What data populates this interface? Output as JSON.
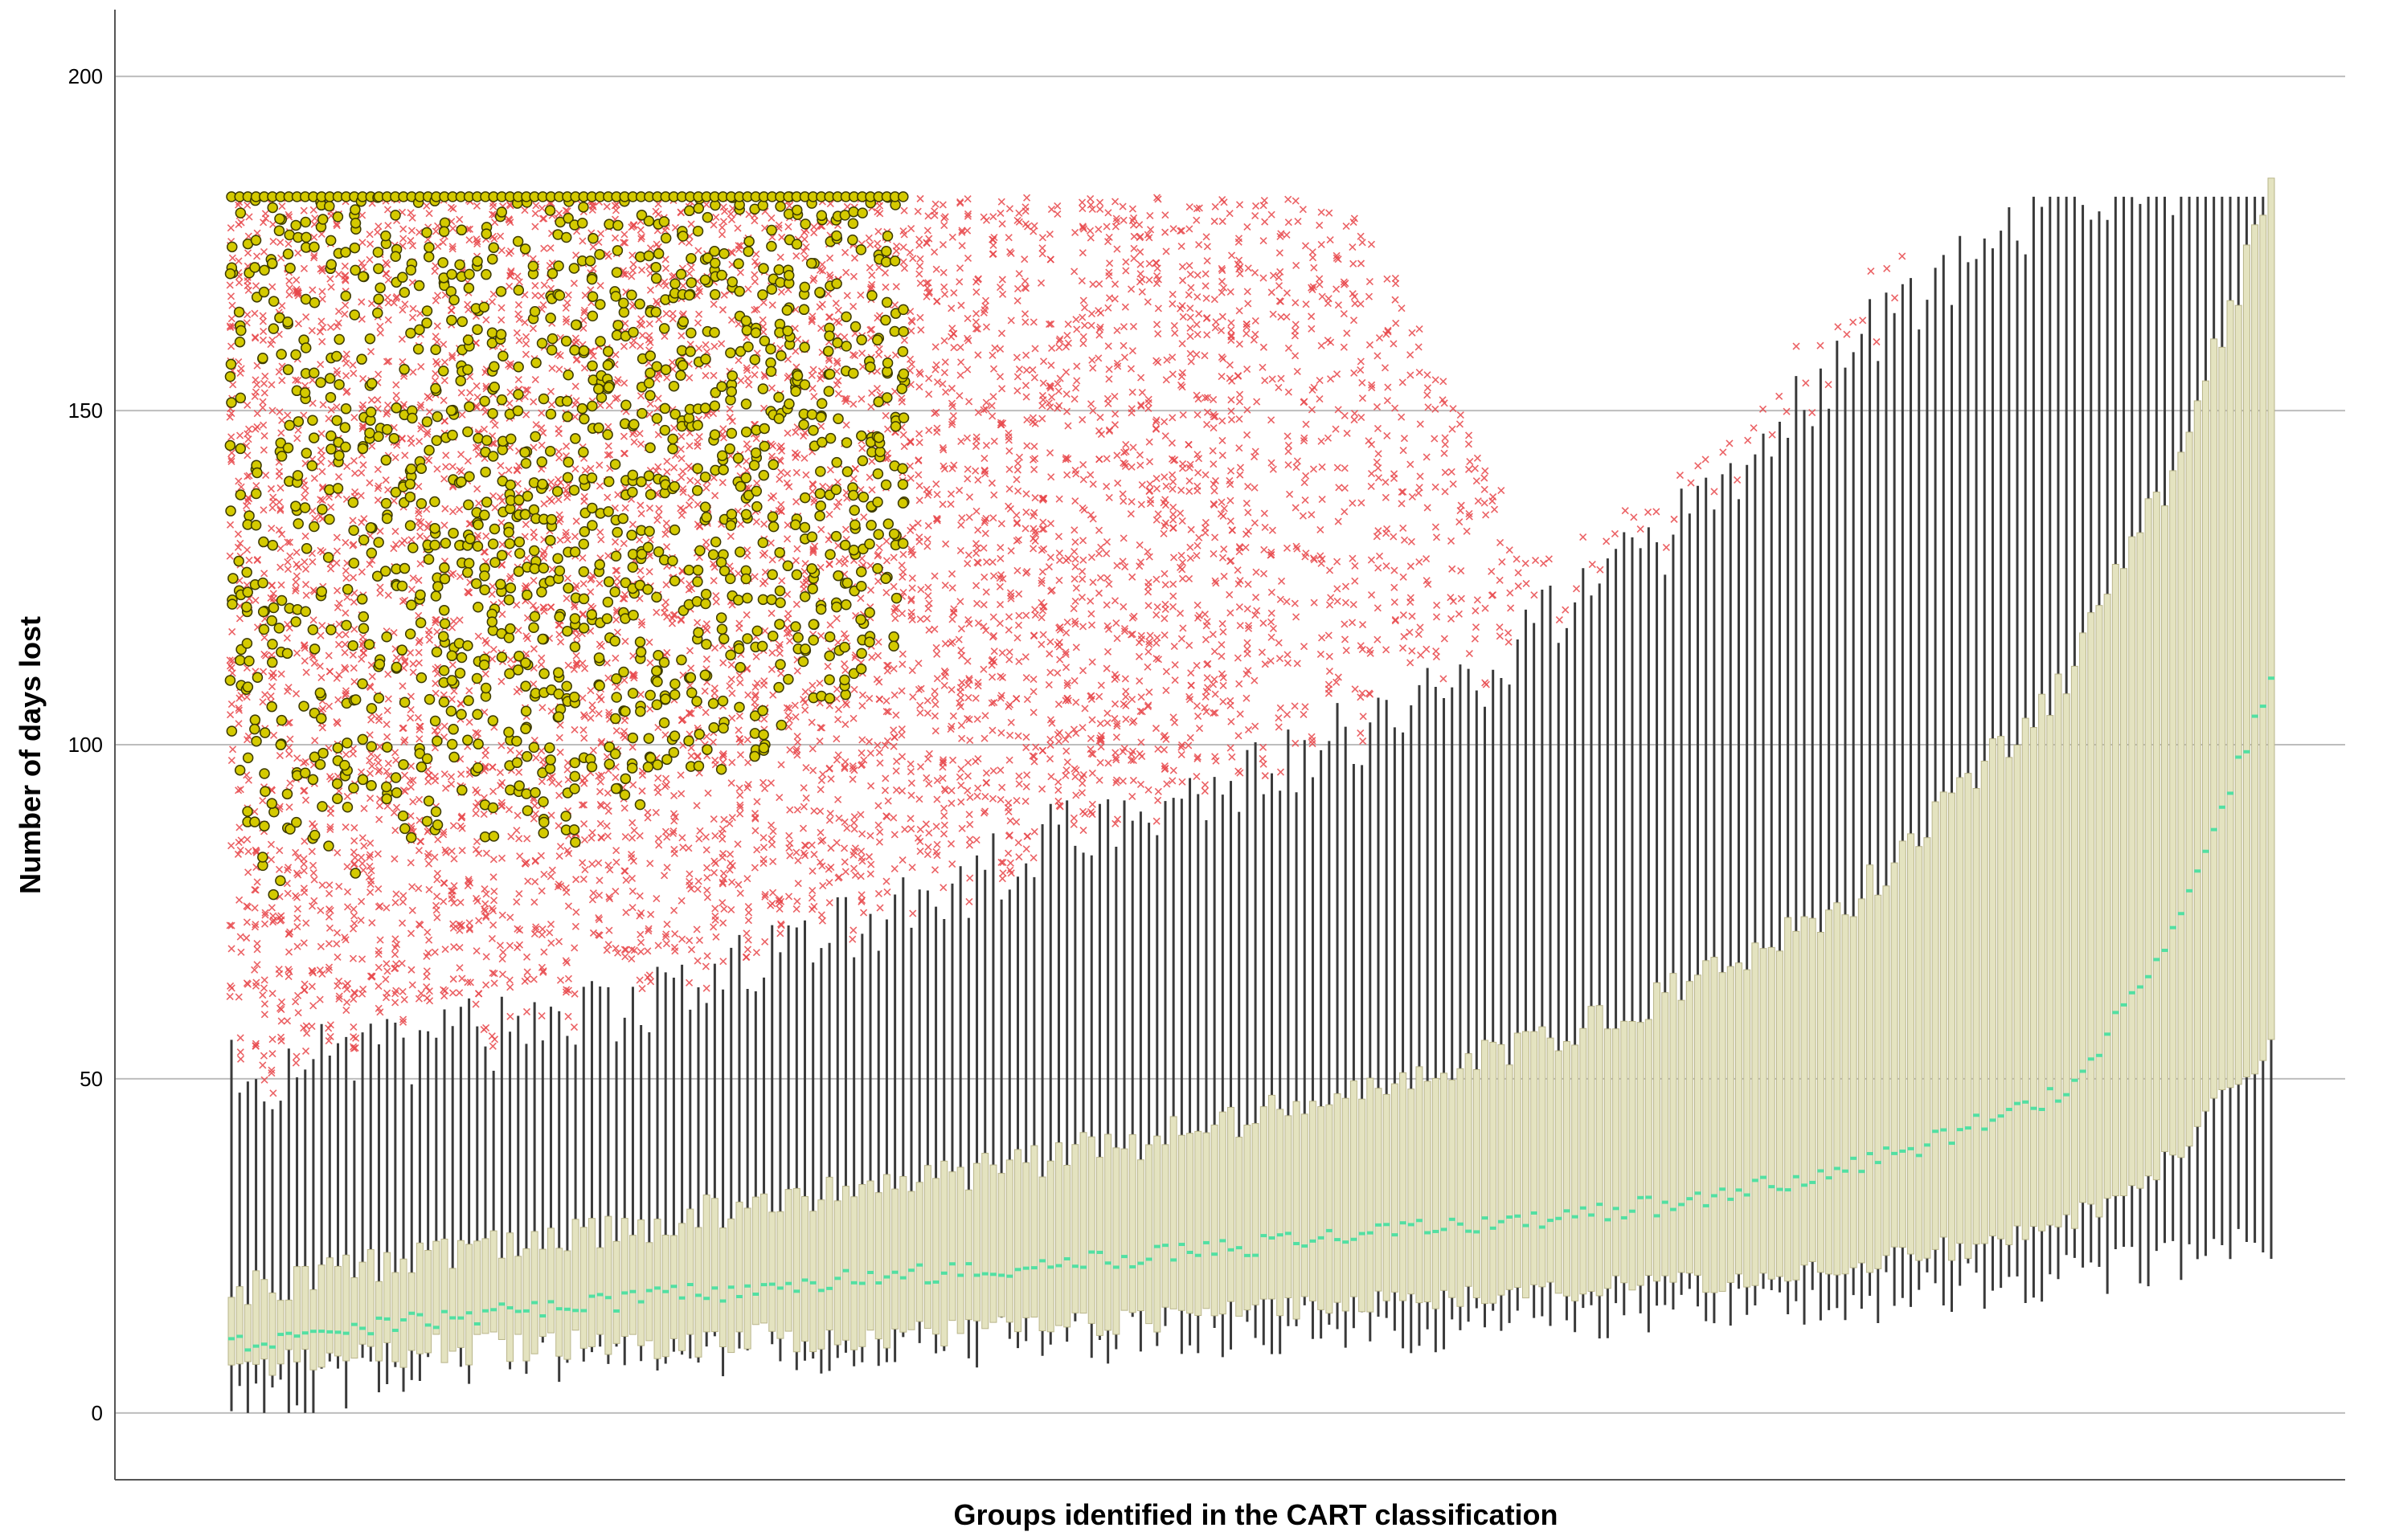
{
  "chart_data": {
    "type": "boxplot",
    "title": "",
    "xlabel": "Groups identified in the CART classification",
    "ylabel": "Number of days lost",
    "ylim": [
      -10,
      210
    ],
    "yticks": [
      0,
      50,
      100,
      150,
      200
    ],
    "grid": true,
    "group_count": 250,
    "notes_visible": "Groups are unlabeled on the x-axis; boxes are sorted by increasing median.",
    "summary_by_position": {
      "position_fraction": [
        0.0,
        0.1,
        0.2,
        0.3,
        0.4,
        0.5,
        0.6,
        0.7,
        0.8,
        0.9,
        0.95,
        1.0
      ],
      "whisker_low": [
        0,
        8,
        9,
        10,
        11,
        12,
        13,
        15,
        17,
        20,
        22,
        25
      ],
      "q1": [
        7,
        9,
        10,
        11,
        13,
        15,
        17,
        19,
        22,
        28,
        38,
        55
      ],
      "median": [
        10,
        14,
        17,
        20,
        22,
        25,
        28,
        31,
        37,
        48,
        70,
        110
      ],
      "q3": [
        18,
        24,
        28,
        33,
        38,
        44,
        52,
        62,
        78,
        110,
        140,
        182
      ],
      "whisker_high": [
        50,
        55,
        62,
        72,
        85,
        95,
        108,
        130,
        160,
        182,
        182,
        182
      ]
    },
    "outliers_moderate_marker": "x",
    "outliers_extreme_marker": "circle",
    "colors": {
      "box_fill": "#E4E3C0",
      "box_stroke": "#B9B58A",
      "median": "#52E0A3",
      "whisker": "#3A3A3A",
      "outlier_moderate": "#E8474A",
      "outlier_extreme_fill": "#D4CA00",
      "outlier_extreme_stroke": "#3C3A00",
      "gridline": "#BDBDBD",
      "axis": "#555555"
    }
  }
}
